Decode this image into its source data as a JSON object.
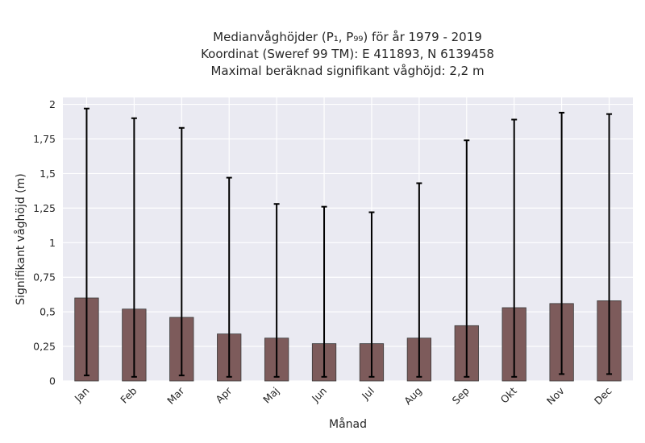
{
  "chart_data": {
    "type": "bar",
    "title_lines": [
      "Medianvåghöjder (P₁, P₉₉) för år 1979 - 2019",
      "Koordinat (Sweref 99 TM): E 411893, N 6139458",
      "Maximal beräknad signifikant våghöjd: 2,2 m"
    ],
    "xlabel": "Månad",
    "ylabel": "Signifikant våghöjd (m)",
    "ylim": [
      0,
      2.05
    ],
    "y_ticks": [
      0,
      0.25,
      0.5,
      0.75,
      1,
      1.25,
      1.5,
      1.75,
      2
    ],
    "y_tick_labels": [
      "0",
      "0,25",
      "0,5",
      "0,75",
      "1",
      "1,25",
      "1,5",
      "1,75",
      "2"
    ],
    "grid": true,
    "categories": [
      "Jan",
      "Feb",
      "Mar",
      "Apr",
      "Maj",
      "Jun",
      "Jul",
      "Aug",
      "Sep",
      "Okt",
      "Nov",
      "Dec"
    ],
    "values": [
      0.6,
      0.52,
      0.46,
      0.34,
      0.31,
      0.27,
      0.27,
      0.31,
      0.4,
      0.53,
      0.56,
      0.58
    ],
    "p1": [
      0.04,
      0.03,
      0.04,
      0.03,
      0.03,
      0.03,
      0.03,
      0.03,
      0.03,
      0.03,
      0.05,
      0.05
    ],
    "p99": [
      1.97,
      1.9,
      1.83,
      1.47,
      1.28,
      1.26,
      1.22,
      1.43,
      1.74,
      1.89,
      1.94,
      1.93
    ],
    "bar_color": "#7d5b5b",
    "background_color": "#eaeaf2",
    "error_color": "#000000"
  }
}
